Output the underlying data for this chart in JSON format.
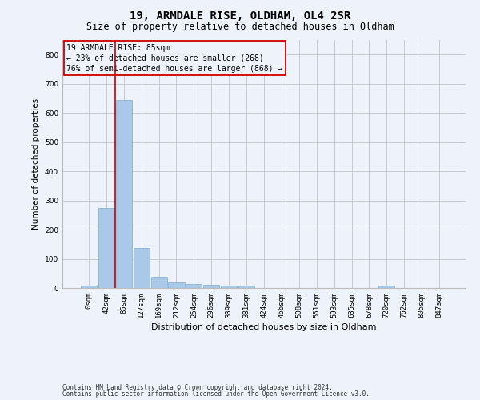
{
  "title1": "19, ARMDALE RISE, OLDHAM, OL4 2SR",
  "title2": "Size of property relative to detached houses in Oldham",
  "xlabel": "Distribution of detached houses by size in Oldham",
  "ylabel": "Number of detached properties",
  "footnote1": "Contains HM Land Registry data © Crown copyright and database right 2024.",
  "footnote2": "Contains public sector information licensed under the Open Government Licence v3.0.",
  "annotation_line1": "19 ARMDALE RISE: 85sqm",
  "annotation_line2": "← 23% of detached houses are smaller (268)",
  "annotation_line3": "76% of semi-detached houses are larger (868) →",
  "bar_values": [
    8,
    275,
    645,
    138,
    38,
    20,
    13,
    10,
    8,
    7,
    0,
    0,
    0,
    0,
    0,
    0,
    0,
    8,
    0,
    0,
    0
  ],
  "bar_labels": [
    "0sqm",
    "42sqm",
    "85sqm",
    "127sqm",
    "169sqm",
    "212sqm",
    "254sqm",
    "296sqm",
    "339sqm",
    "381sqm",
    "424sqm",
    "466sqm",
    "508sqm",
    "551sqm",
    "593sqm",
    "635sqm",
    "678sqm",
    "720sqm",
    "762sqm",
    "805sqm",
    "847sqm"
  ],
  "bar_color": "#aac9e8",
  "bar_edge_color": "#7aadd4",
  "grid_color": "#c8c8d0",
  "vline_color": "#cc0000",
  "annotation_box_color": "#cc0000",
  "ylim": [
    0,
    850
  ],
  "yticks": [
    0,
    100,
    200,
    300,
    400,
    500,
    600,
    700,
    800
  ],
  "bg_color": "#eef2fa",
  "title_fontsize": 10,
  "subtitle_fontsize": 8.5,
  "ylabel_fontsize": 7.5,
  "xlabel_fontsize": 8,
  "tick_fontsize": 6.5,
  "annotation_fontsize": 7,
  "footnote_fontsize": 5.5
}
